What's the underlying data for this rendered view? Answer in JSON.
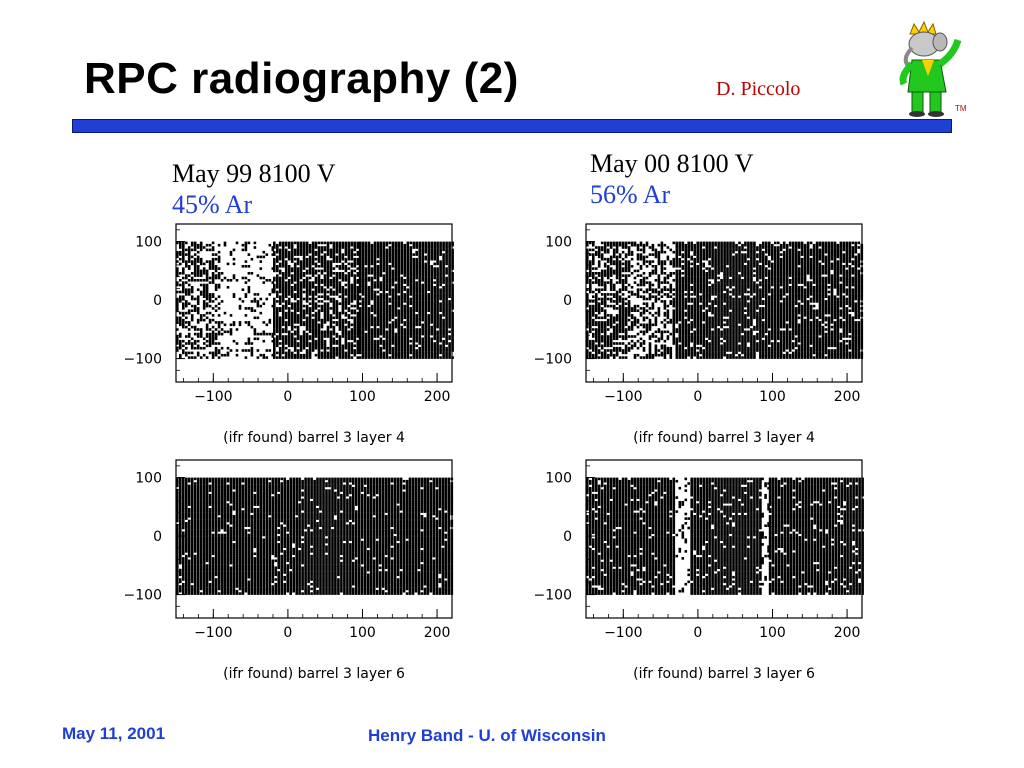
{
  "slide": {
    "title": "RPC radiography (2)",
    "author": "D. Piccolo",
    "tm_mark": "TM",
    "accent_color": "#1f3fd4",
    "author_color": "#c00000",
    "footer_date": "May 11, 2001",
    "footer_author": "Henry Band -  U. of Wisconsin"
  },
  "captions": [
    {
      "line1": "May 99 8100 V",
      "line2": "45% Ar"
    },
    {
      "line1": "May 00 8100 V",
      "line2": "56% Ar"
    }
  ],
  "chart_data": [
    {
      "type": "scatter",
      "title": "(ifr found) barrel 3 layer 4",
      "xlim": [
        -150,
        220
      ],
      "ylim": [
        -140,
        130
      ],
      "xticks": [
        -100,
        0,
        100,
        200
      ],
      "yticks": [
        100,
        0,
        -100
      ],
      "xtick_labels": [
        "−100",
        "0",
        "100",
        "200"
      ],
      "ytick_labels": [
        "100",
        "0",
        "−100"
      ],
      "coverage": [
        {
          "x": [
            -150,
            -90
          ],
          "y": [
            -100,
            100
          ],
          "density": 0.55
        },
        {
          "x": [
            -90,
            -20
          ],
          "y": [
            -100,
            100
          ],
          "density": 0.2
        },
        {
          "x": [
            -20,
            95
          ],
          "y": [
            -100,
            100
          ],
          "density": 0.8
        },
        {
          "x": [
            95,
            220
          ],
          "y": [
            -100,
            100
          ],
          "density": 0.92
        }
      ]
    },
    {
      "type": "scatter",
      "title": "(ifr found) barrel 3 layer 4",
      "xlim": [
        -150,
        220
      ],
      "ylim": [
        -140,
        130
      ],
      "xticks": [
        -100,
        0,
        100,
        200
      ],
      "yticks": [
        100,
        0,
        -100
      ],
      "xtick_labels": [
        "−100",
        "0",
        "100",
        "200"
      ],
      "ytick_labels": [
        "100",
        "0",
        "−100"
      ],
      "coverage": [
        {
          "x": [
            -150,
            -90
          ],
          "y": [
            -100,
            100
          ],
          "density": 0.7
        },
        {
          "x": [
            -90,
            -30
          ],
          "y": [
            -100,
            100
          ],
          "density": 0.45
        },
        {
          "x": [
            -30,
            220
          ],
          "y": [
            -100,
            100
          ],
          "density": 0.9
        }
      ]
    },
    {
      "type": "scatter",
      "title": "(ifr found) barrel 3 layer 6",
      "xlim": [
        -150,
        220
      ],
      "ylim": [
        -140,
        130
      ],
      "xticks": [
        -100,
        0,
        100,
        200
      ],
      "yticks": [
        100,
        0,
        -100
      ],
      "xtick_labels": [
        "−100",
        "0",
        "100",
        "200"
      ],
      "ytick_labels": [
        "100",
        "0",
        "−100"
      ],
      "coverage": [
        {
          "x": [
            -150,
            220
          ],
          "y": [
            -100,
            100
          ],
          "density": 0.95
        }
      ]
    },
    {
      "type": "scatter",
      "title": "(ifr found) barrel 3 layer 6",
      "xlim": [
        -150,
        220
      ],
      "ylim": [
        -140,
        130
      ],
      "xticks": [
        -100,
        0,
        100,
        200
      ],
      "yticks": [
        100,
        0,
        -100
      ],
      "xtick_labels": [
        "−100",
        "0",
        "100",
        "200"
      ],
      "ytick_labels": [
        "100",
        "0",
        "−100"
      ],
      "coverage": [
        {
          "x": [
            -150,
            -30
          ],
          "y": [
            -100,
            100
          ],
          "density": 0.93
        },
        {
          "x": [
            -30,
            -10
          ],
          "y": [
            -100,
            100
          ],
          "density": 0.15
        },
        {
          "x": [
            -10,
            85
          ],
          "y": [
            -100,
            100
          ],
          "density": 0.93
        },
        {
          "x": [
            85,
            95
          ],
          "y": [
            -100,
            100
          ],
          "density": 0.2
        },
        {
          "x": [
            95,
            220
          ],
          "y": [
            -100,
            100
          ],
          "density": 0.93
        }
      ]
    }
  ]
}
